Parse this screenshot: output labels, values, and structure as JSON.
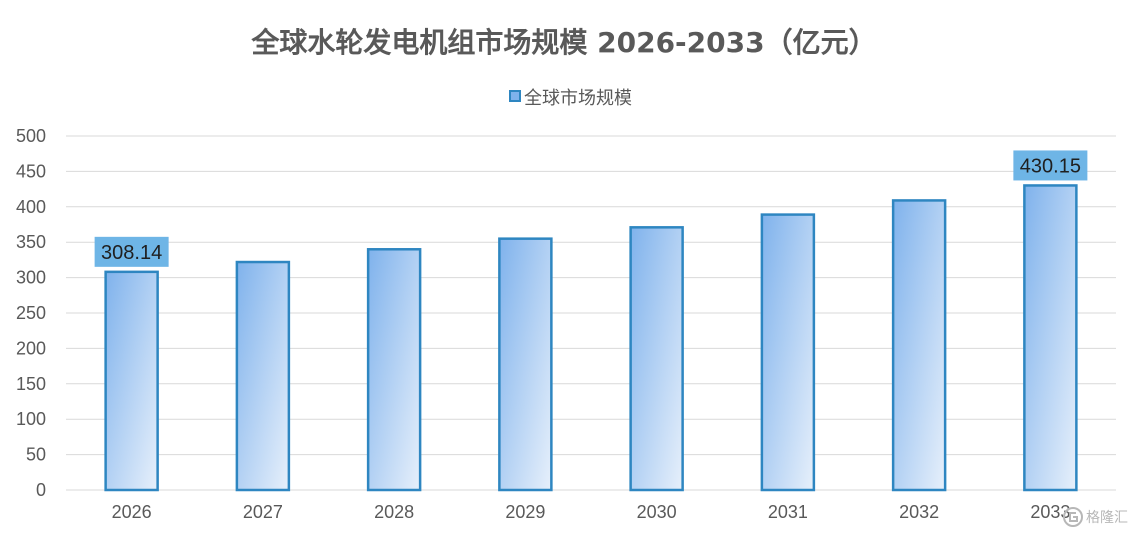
{
  "colors": {
    "bar_fill_start": "#7fb2ec",
    "bar_fill_end": "#e7f0fb",
    "bar_stroke": "#2e86c1",
    "label_box": "#6eb5e6",
    "grid": "#d9d9d9",
    "axis_text": "#595959"
  },
  "chart_data": {
    "type": "bar",
    "title": "全球水轮发电机组市场规模 2026-2033（亿元）",
    "legend": {
      "entries": [
        "全球市场规模"
      ],
      "placement": "top-center"
    },
    "categories": [
      "2026",
      "2027",
      "2028",
      "2029",
      "2030",
      "2031",
      "2032",
      "2033"
    ],
    "series": [
      {
        "name": "全球市场规模",
        "values": [
          308.14,
          322,
          340,
          355,
          371,
          389,
          409,
          430.15
        ]
      }
    ],
    "data_labels": [
      {
        "index": 0,
        "text": "308.14"
      },
      {
        "index": 7,
        "text": "430.15"
      }
    ],
    "ylim": [
      0,
      500
    ],
    "y_ticks": [
      "0",
      "50",
      "100",
      "150",
      "200",
      "250",
      "300",
      "350",
      "400",
      "450",
      "500"
    ],
    "grid": true,
    "xlabel": "",
    "ylabel": ""
  },
  "watermark": {
    "icon": "gelonghui-logo-icon",
    "text": "格隆汇"
  }
}
